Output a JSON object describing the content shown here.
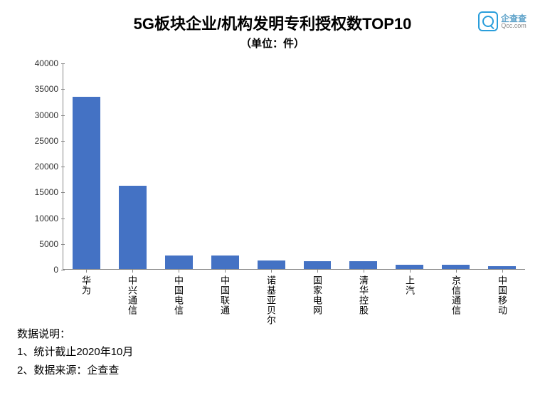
{
  "title": "5G板块企业/机构发明专利授权数TOP10",
  "subtitle": "（单位：件）",
  "logo": {
    "cn": "企查查",
    "en": "Qcc.com"
  },
  "chart": {
    "type": "bar",
    "ylim": [
      0,
      40000
    ],
    "ytick_step": 5000,
    "yticks": [
      40000,
      35000,
      30000,
      25000,
      20000,
      15000,
      10000,
      5000,
      0
    ],
    "bar_color": "#4472c4",
    "axis_color": "#888888",
    "background_color": "#ffffff",
    "bar_width_ratio": 0.6,
    "label_fontsize": 13,
    "ytick_fontsize": 12,
    "categories": [
      "华为",
      "中兴通信",
      "中国电信",
      "中国联通",
      "诺基亚贝尔",
      "国家电网",
      "清华控股",
      "上汽",
      "京信通信",
      "中国移动"
    ],
    "values": [
      33500,
      16200,
      2600,
      2700,
      1600,
      1500,
      1500,
      800,
      800,
      600
    ]
  },
  "notes": {
    "heading": "数据说明：",
    "line1": "1、统计截止2020年10月",
    "line2": "2、数据来源：企查查"
  }
}
